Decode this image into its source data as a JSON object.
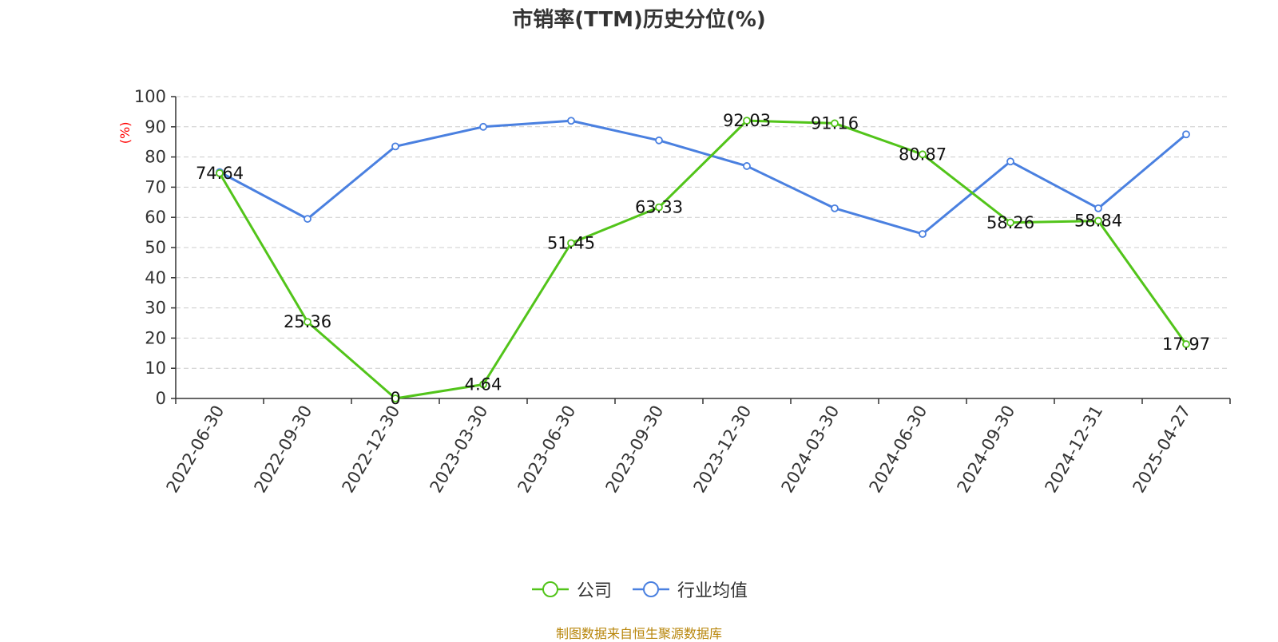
{
  "colors": {
    "company": "#52c41a",
    "industry": "#4a80e0",
    "source": "#b8860b",
    "ylabel": "#ff0000"
  },
  "chart_data": {
    "type": "line",
    "title": "市销率(TTM)历史分位(%)",
    "ylabel": "(%)",
    "xlabel": "",
    "ylim": [
      0,
      100
    ],
    "yticks": [
      0,
      10,
      20,
      30,
      40,
      50,
      60,
      70,
      80,
      90,
      100
    ],
    "grid": true,
    "legend_position": "bottom",
    "categories": [
      "2022-06-30",
      "2022-09-30",
      "2022-12-30",
      "2023-03-30",
      "2023-06-30",
      "2023-09-30",
      "2023-12-30",
      "2024-03-30",
      "2024-06-30",
      "2024-09-30",
      "2024-12-31",
      "2025-04-27"
    ],
    "series": [
      {
        "name": "公司",
        "values": [
          74.64,
          25.36,
          0,
          4.64,
          51.45,
          63.33,
          92.03,
          91.16,
          80.87,
          58.26,
          58.84,
          17.97
        ],
        "labels": [
          "74.64",
          "25.36",
          "0",
          "4.64",
          "51.45",
          "63.33",
          "92.03",
          "91.16",
          "80.87",
          "58.26",
          "58.84",
          "17.97"
        ]
      },
      {
        "name": "行业均值",
        "values": [
          75,
          59.5,
          83.5,
          90,
          92,
          85.5,
          77,
          63,
          54.5,
          78.5,
          63,
          87.5
        ]
      }
    ]
  },
  "source_note": "制图数据来自恒生聚源数据库"
}
